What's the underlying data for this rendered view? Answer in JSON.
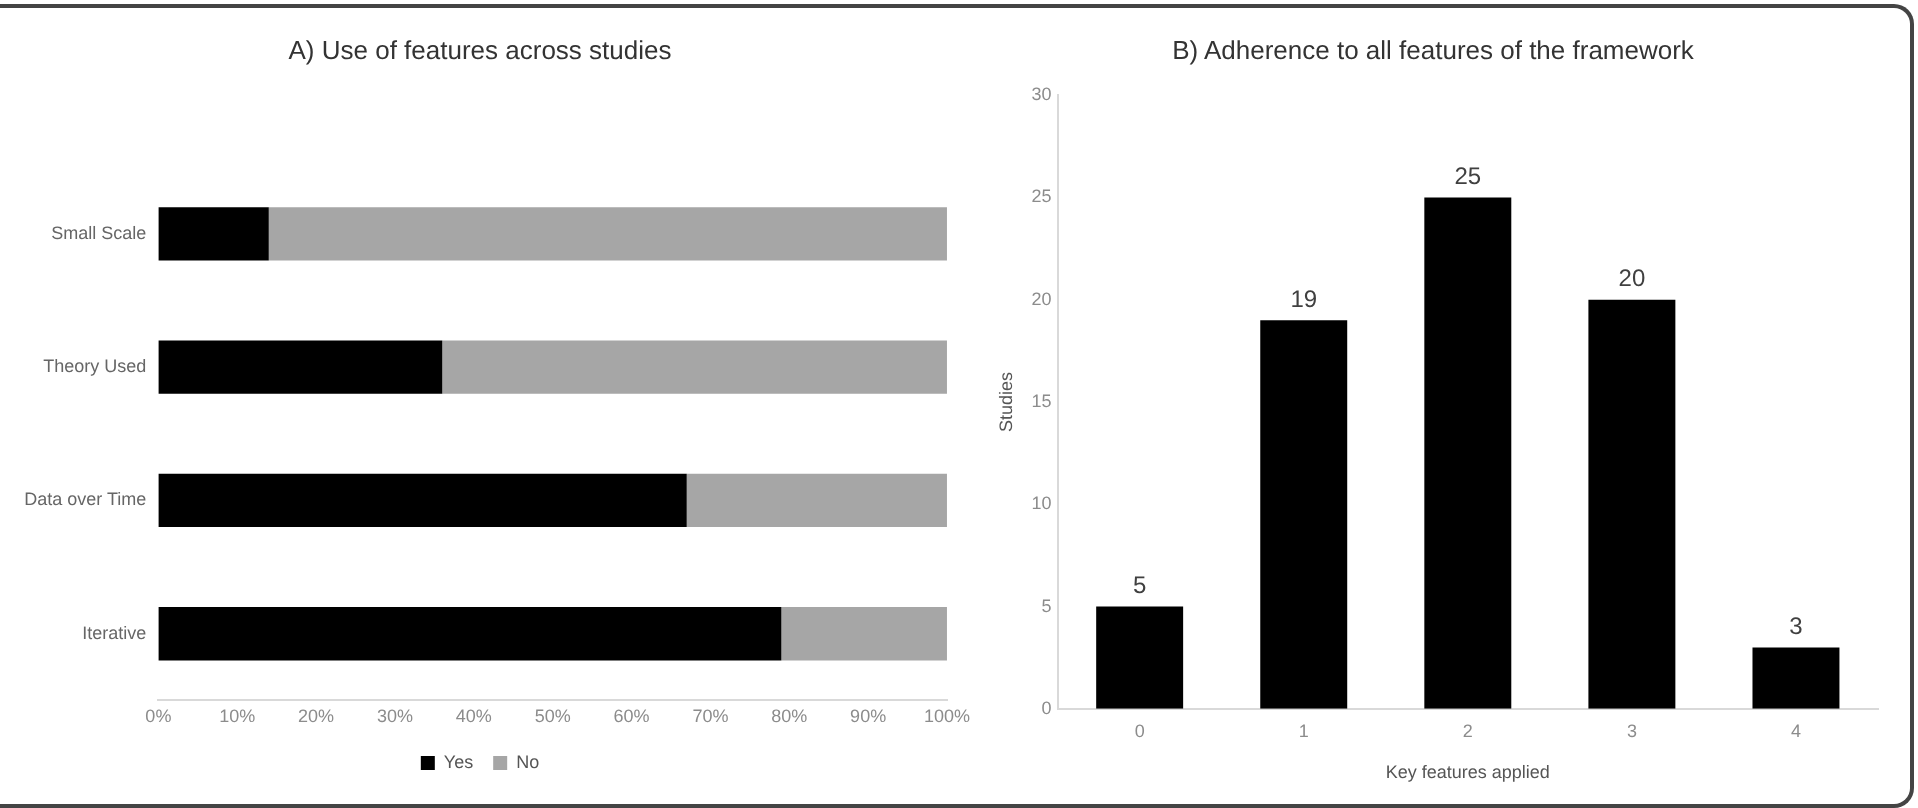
{
  "chart_data": [
    {
      "type": "bar",
      "title": "A) Use of features across studies",
      "orientation": "horizontal",
      "stacked": true,
      "categories": [
        "Small Scale",
        "Theory Used",
        "Data over Time",
        "Iterative"
      ],
      "series": [
        {
          "name": "Yes",
          "color": "#000000",
          "values": [
            14,
            36,
            67,
            79
          ]
        },
        {
          "name": "No",
          "color": "#a6a6a6",
          "values": [
            86,
            64,
            33,
            21
          ]
        }
      ],
      "xlim": [
        0,
        100
      ],
      "xticks": [
        {
          "value": 0,
          "label": "0%"
        },
        {
          "value": 10,
          "label": "10%"
        },
        {
          "value": 20,
          "label": "20%"
        },
        {
          "value": 30,
          "label": "30%"
        },
        {
          "value": 40,
          "label": "40%"
        },
        {
          "value": 50,
          "label": "50%"
        },
        {
          "value": 60,
          "label": "60%"
        },
        {
          "value": 70,
          "label": "70%"
        },
        {
          "value": 80,
          "label": "80%"
        },
        {
          "value": 90,
          "label": "90%"
        },
        {
          "value": 100,
          "label": "100%"
        }
      ],
      "grid": false,
      "legend": "bottom"
    },
    {
      "type": "bar",
      "title": "B) Adherence to all features of the framework",
      "xlabel": "Key features applied",
      "ylabel": "Studies",
      "categories": [
        "0",
        "1",
        "2",
        "3",
        "4"
      ],
      "values": [
        5,
        19,
        25,
        20,
        3
      ],
      "color": "#000000",
      "data_labels": true,
      "ylim": [
        0,
        30
      ],
      "yticks": [
        0,
        5,
        10,
        15,
        20,
        25,
        30
      ],
      "grid": false
    }
  ]
}
